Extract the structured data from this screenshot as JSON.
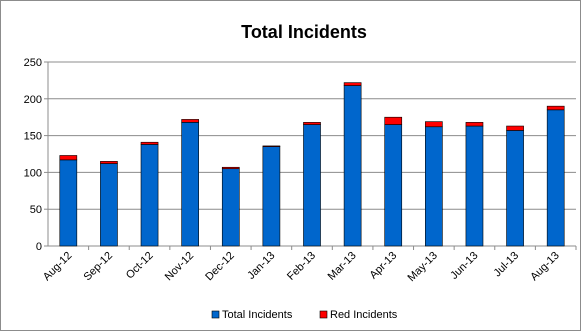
{
  "chart_data": {
    "type": "bar",
    "stacked": true,
    "title": "Total Incidents",
    "categories": [
      "Aug-12",
      "Sep-12",
      "Oct-12",
      "Nov-12",
      "Dec-12",
      "Jan-13",
      "Feb-13",
      "Mar-13",
      "Apr-13",
      "May-13",
      "Jun-13",
      "Jul-13",
      "Aug-13"
    ],
    "series": [
      {
        "name": "Total Incidents",
        "color": "#0066cc",
        "values": [
          117,
          112,
          138,
          168,
          105,
          135,
          165,
          218,
          165,
          162,
          163,
          157,
          185
        ]
      },
      {
        "name": "Red Incidents",
        "color": "#ff0000",
        "values": [
          6,
          3,
          3,
          4,
          2,
          1,
          3,
          4,
          10,
          7,
          5,
          6,
          5
        ]
      }
    ],
    "ylim": [
      0,
      250
    ],
    "yticks": [
      "0",
      "50",
      "100",
      "150",
      "200",
      "250"
    ],
    "grid": true,
    "legend_position": "bottom"
  }
}
